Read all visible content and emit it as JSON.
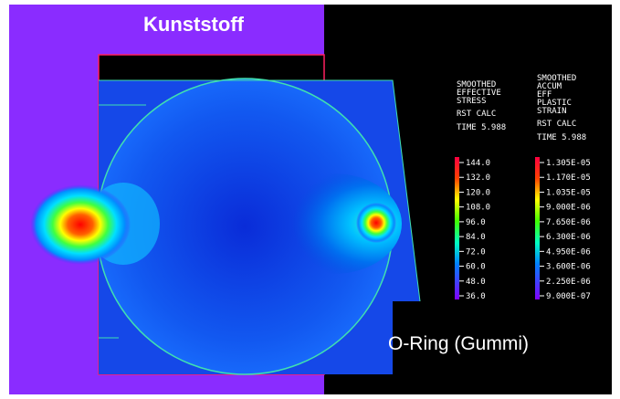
{
  "labels": {
    "material": "Kunststoff",
    "oring": "O-Ring (Gummi)"
  },
  "legends": [
    {
      "title": [
        "SMOOTHED",
        "EFFECTIVE",
        "STRESS"
      ],
      "calc": "RST CALC",
      "time": "TIME 5.988",
      "values": [
        "144.0",
        "132.0",
        "120.0",
        "108.0",
        "96.0",
        "84.0",
        "72.0",
        "60.0",
        "48.0",
        "36.0"
      ]
    },
    {
      "title": [
        "SMOOTHED",
        "ACCUM",
        "EFF",
        "PLASTIC",
        "STRAIN"
      ],
      "calc": "RST CALC",
      "time": "TIME 5.988",
      "values": [
        "1.305E-05",
        "1.170E-05",
        "1.035E-05",
        "9.000E-06",
        "7.650E-06",
        "6.300E-06",
        "4.950E-06",
        "3.600E-06",
        "2.250E-06",
        "9.000E-07"
      ]
    }
  ]
}
